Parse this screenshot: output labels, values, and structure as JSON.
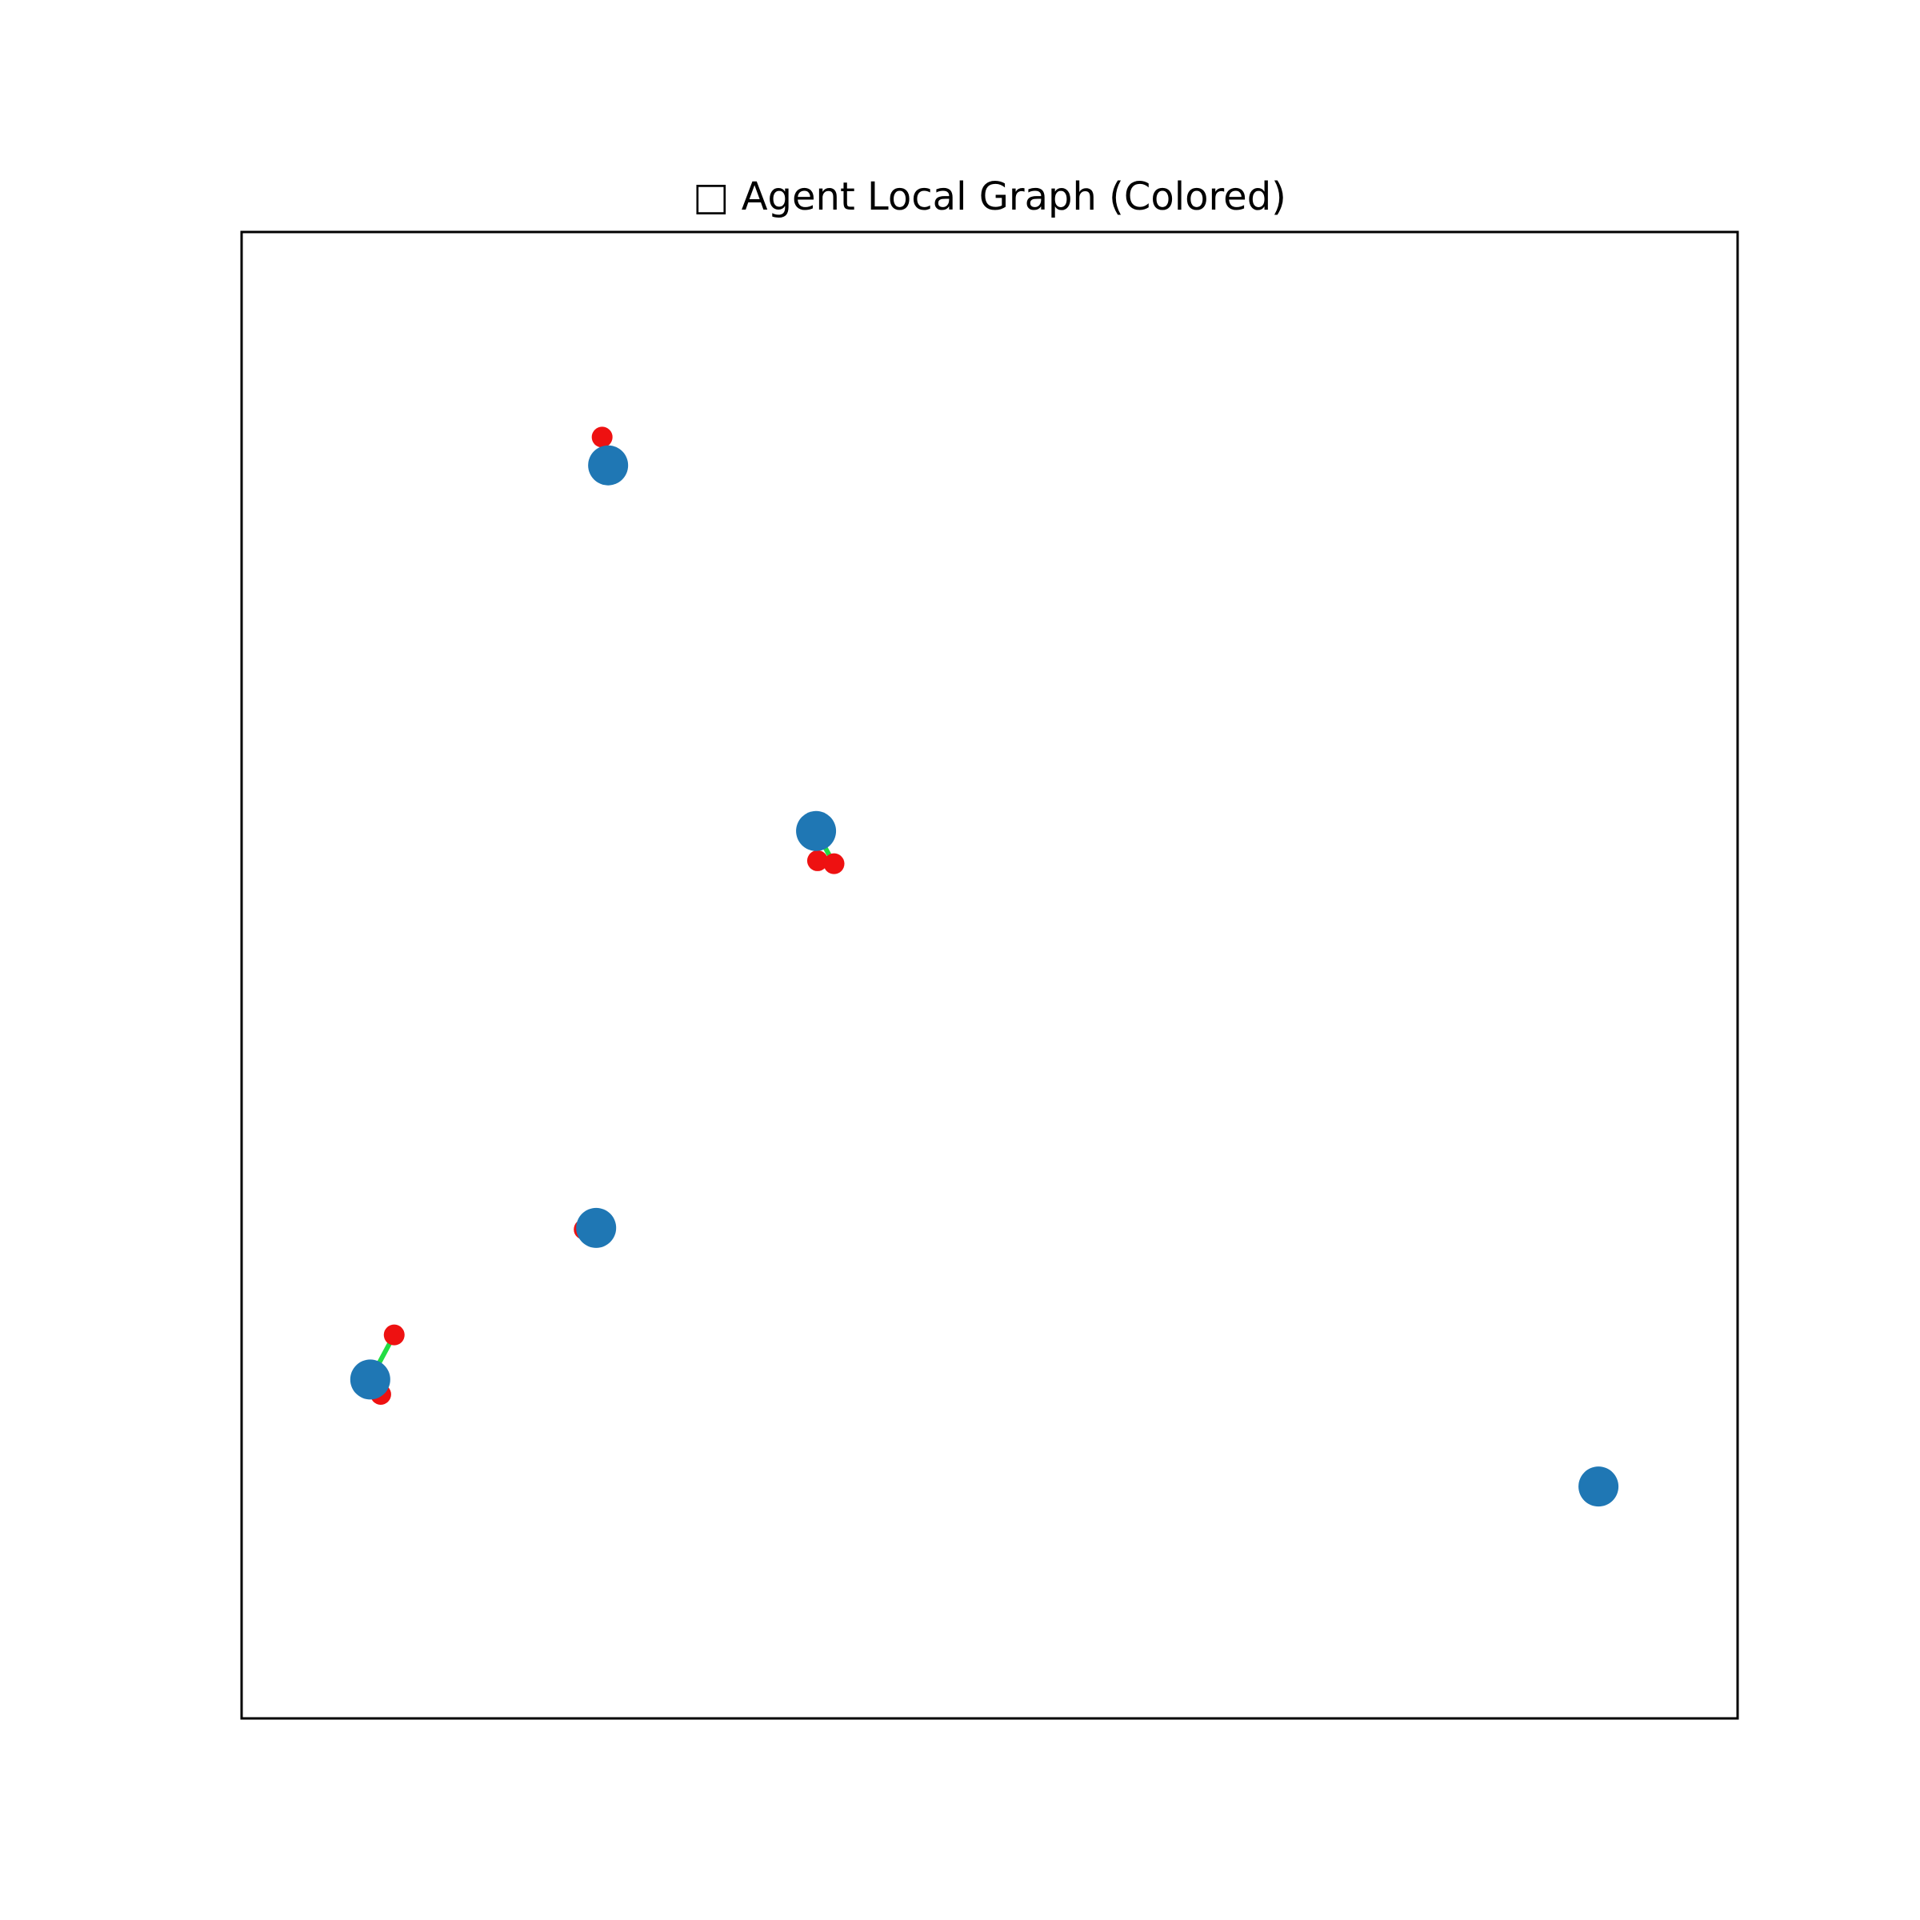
{
  "chart_data": {
    "type": "scatter",
    "title": "□ Agent Local Graph (Colored)",
    "xlabel": "",
    "ylabel": "",
    "grid": false,
    "axes_ticks": false,
    "xlim": [
      0,
      100
    ],
    "ylim": [
      0,
      100
    ],
    "series": [
      {
        "kind": "agent-node",
        "color": "#1f77b4",
        "points": [
          {
            "x": 24.5,
            "y": 84.3
          },
          {
            "x": 38.4,
            "y": 59.7
          },
          {
            "x": 23.7,
            "y": 33.0
          },
          {
            "x": 8.6,
            "y": 22.8
          },
          {
            "x": 90.7,
            "y": 15.6
          }
        ]
      },
      {
        "kind": "target-node",
        "color": "#ee1111",
        "points": [
          {
            "x": 24.1,
            "y": 86.2
          },
          {
            "x": 38.5,
            "y": 57.7
          },
          {
            "x": 39.6,
            "y": 57.5
          },
          {
            "x": 22.9,
            "y": 32.9
          },
          {
            "x": 10.2,
            "y": 25.8
          },
          {
            "x": 9.3,
            "y": 21.8
          }
        ]
      },
      {
        "kind": "edge",
        "color": "#22dd44",
        "segments": [
          {
            "x1": 38.4,
            "y1": 59.7,
            "x2": 39.6,
            "y2": 57.5
          },
          {
            "x1": 8.6,
            "y1": 22.8,
            "x2": 10.2,
            "y2": 25.8
          }
        ]
      }
    ]
  }
}
